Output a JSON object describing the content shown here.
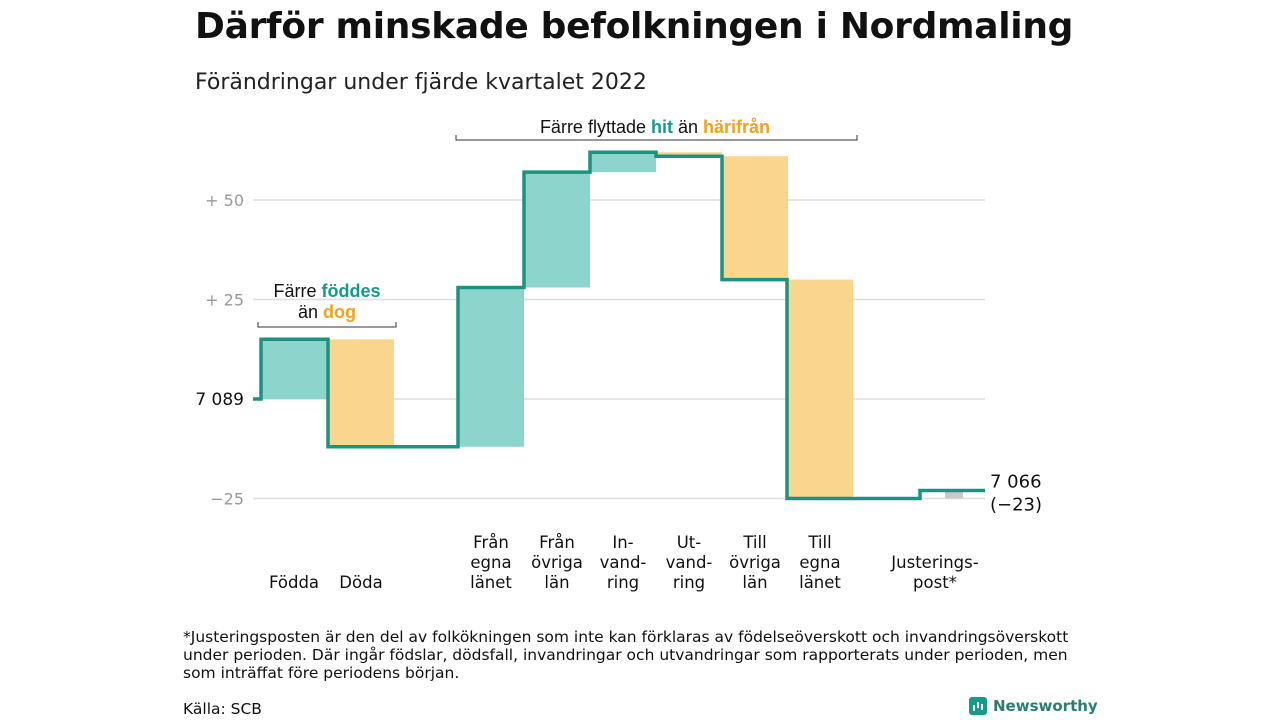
{
  "title": "Därför minskade befolkningen i Nordmaling",
  "subtitle": "Förändringar under fjärde kvartalet 2022",
  "colors": {
    "inflow": "#8dd5cc",
    "outflow": "#fad58e",
    "adjustment": "#c9c9c9",
    "line": "#1a9481",
    "teal_text": "#149c8a",
    "orange_text": "#f2a31b",
    "grid": "#dddddd",
    "axis_text": "#999999"
  },
  "annotations": {
    "births": {
      "line1_pre": "Färre ",
      "line1_hl": "föddes",
      "line2_pre": "än ",
      "line2_hl": "dog"
    },
    "moves": {
      "pre": "Färre flyttade ",
      "hl1": "hit",
      "mid": " än ",
      "hl2": "härifrån"
    }
  },
  "footnote": "*Justeringsposten är den del av folkökningen som inte kan förklaras av födelseöverskott och invandringsöverskott under perioden. Där ingår födslar, dödsfall, invandringar och utvandringar som rapporterats under perioden, men som inträffat före periodens början.",
  "source": "Källa: SCB",
  "brand": "Newsworthy",
  "chart_data": {
    "type": "bar",
    "subtype": "waterfall",
    "start_value": 7089,
    "start_label": "7 089",
    "end_label": "7 066",
    "end_change_label": "(−23)",
    "y_tick_labels": [
      "+ 50",
      "+ 25",
      "7 089",
      "−25"
    ],
    "y_ticks": [
      50,
      25,
      0,
      -25
    ],
    "ylim": [
      -25,
      62
    ],
    "steps": [
      {
        "label": [
          "Födda"
        ],
        "change": 15,
        "kind": "inflow"
      },
      {
        "label": [
          "Döda"
        ],
        "change": -27,
        "kind": "outflow"
      },
      {
        "label": [
          "Från",
          "egna",
          "länet"
        ],
        "change": 40,
        "kind": "inflow"
      },
      {
        "label": [
          "Från",
          "övriga",
          "län"
        ],
        "change": 29,
        "kind": "inflow"
      },
      {
        "label": [
          "In-",
          "vand-",
          "ring"
        ],
        "change": 5,
        "kind": "inflow"
      },
      {
        "label": [
          "Ut-",
          "vand-",
          "ring"
        ],
        "change": -1,
        "kind": "outflow"
      },
      {
        "label": [
          "Till",
          "övriga",
          "län"
        ],
        "change": -31,
        "kind": "outflow"
      },
      {
        "label": [
          "Till",
          "egna",
          "länet"
        ],
        "change": -55,
        "kind": "outflow"
      },
      {
        "label": [
          "Justerings-",
          "post*"
        ],
        "change": 2,
        "kind": "adjustment"
      }
    ]
  }
}
